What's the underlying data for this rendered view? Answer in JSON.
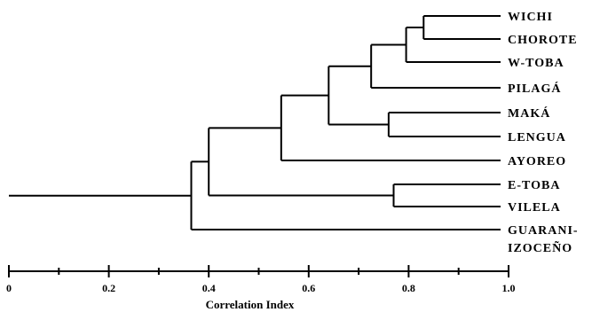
{
  "figure": {
    "axis_label": "Correlation Index"
  },
  "chart_data": {
    "type": "dendrogram",
    "x_axis": {
      "label": "Correlation Index",
      "range": [
        0,
        1
      ],
      "ticks": [
        "0",
        "0.2",
        "0.4",
        "0.6",
        "0.8",
        "1.0"
      ],
      "tick_values": [
        0,
        0.2,
        0.4,
        0.6,
        0.8,
        1.0
      ]
    },
    "leaves": [
      {
        "id": "wichi",
        "label": "WICHI"
      },
      {
        "id": "chorote",
        "label": "CHOROTE"
      },
      {
        "id": "wtoba",
        "label": "W-TOBA"
      },
      {
        "id": "pilaga",
        "label": "PILAGÁ"
      },
      {
        "id": "maka",
        "label": "MAKÁ"
      },
      {
        "id": "lengua",
        "label": "LENGUA"
      },
      {
        "id": "ayoreo",
        "label": "AYOREO"
      },
      {
        "id": "etoba",
        "label": "E-TOBA"
      },
      {
        "id": "vilela",
        "label": "VILELA"
      },
      {
        "id": "guarani",
        "label": "GUARANI-",
        "label_line2": "IZOCEÑO"
      }
    ],
    "merges": [
      {
        "id": "m1",
        "children": [
          "wichi",
          "chorote"
        ],
        "height": 0.83
      },
      {
        "id": "m2",
        "children": [
          "m1",
          "wtoba"
        ],
        "height": 0.795
      },
      {
        "id": "m3",
        "children": [
          "m2",
          "pilaga"
        ],
        "height": 0.725
      },
      {
        "id": "m4",
        "children": [
          "maka",
          "lengua"
        ],
        "height": 0.76
      },
      {
        "id": "m5",
        "children": [
          "m3",
          "m4"
        ],
        "height": 0.64
      },
      {
        "id": "m6",
        "children": [
          "m5",
          "ayoreo"
        ],
        "height": 0.545
      },
      {
        "id": "m7",
        "children": [
          "etoba",
          "vilela"
        ],
        "height": 0.77
      },
      {
        "id": "m8",
        "children": [
          "m6",
          "m7"
        ],
        "height": 0.4
      },
      {
        "id": "m9",
        "children": [
          "m8",
          "guarani"
        ],
        "height": 0.365
      }
    ],
    "root_extends_to": 0
  }
}
